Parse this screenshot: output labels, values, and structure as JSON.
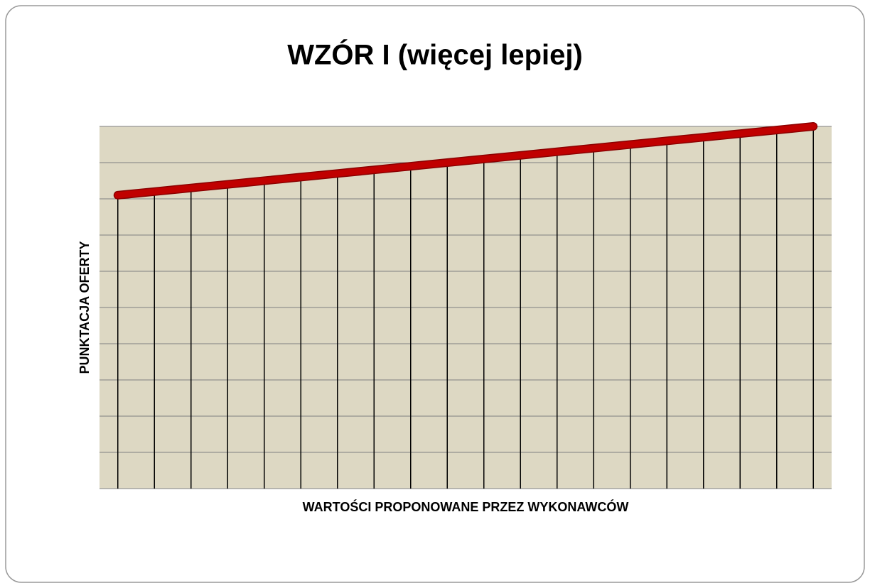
{
  "chart_data": {
    "type": "line",
    "title": "WZÓR I (więcej lepiej)",
    "x_label": "WARTOŚCI PROPONOWANE PRZEZ WYKONAWCÓW",
    "y_label": "PUNKTACJA OFERTY",
    "categories": [
      null,
      null,
      null,
      null,
      null,
      null,
      null,
      null,
      null,
      null,
      null,
      null,
      null,
      null,
      null,
      null,
      null,
      null,
      null,
      null
    ],
    "values": [
      81,
      82,
      83,
      84,
      85,
      86,
      87,
      88,
      89,
      90,
      91,
      92,
      93,
      94,
      95,
      96,
      97,
      98,
      99,
      100
    ],
    "color": "#c00000",
    "ylim": [
      0,
      100
    ],
    "yticks": [
      0,
      10,
      20,
      30,
      40,
      50,
      60,
      70,
      80,
      90,
      100
    ],
    "grid": true,
    "drop_lines": true
  }
}
